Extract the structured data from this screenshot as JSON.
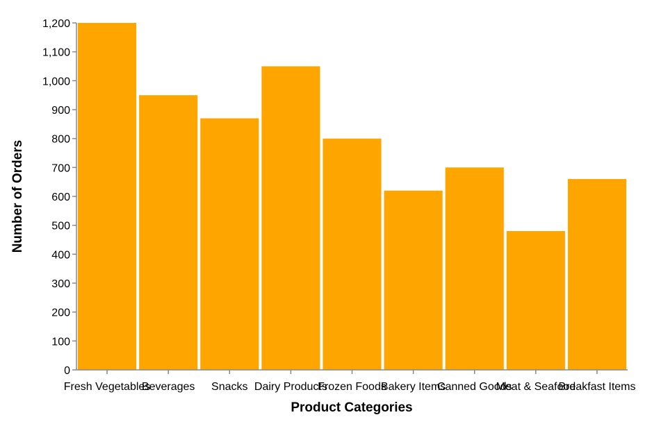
{
  "chart_data": {
    "type": "bar",
    "categories": [
      "Fresh Vegetables",
      "Beverages",
      "Snacks",
      "Dairy Products",
      "Frozen Foods",
      "Bakery Items",
      "Canned Goods",
      "Meat & Seafood",
      "Breakfast Items"
    ],
    "values": [
      1200,
      950,
      870,
      1050,
      800,
      620,
      700,
      480,
      660
    ],
    "title": "",
    "xlabel": "Product Categories",
    "ylabel": "Number of Orders",
    "ylim": [
      0,
      1200
    ],
    "yticks": [
      0,
      100,
      200,
      300,
      400,
      500,
      600,
      700,
      800,
      900,
      1000,
      1100,
      1200
    ],
    "ytick_labels": [
      "0",
      "100",
      "200",
      "300",
      "400",
      "500",
      "600",
      "700",
      "800",
      "900",
      "1,000",
      "1,100",
      "1,200"
    ],
    "grid": false,
    "legend": "none",
    "bar_color": "#FFA500",
    "axis_color": "#888888"
  }
}
